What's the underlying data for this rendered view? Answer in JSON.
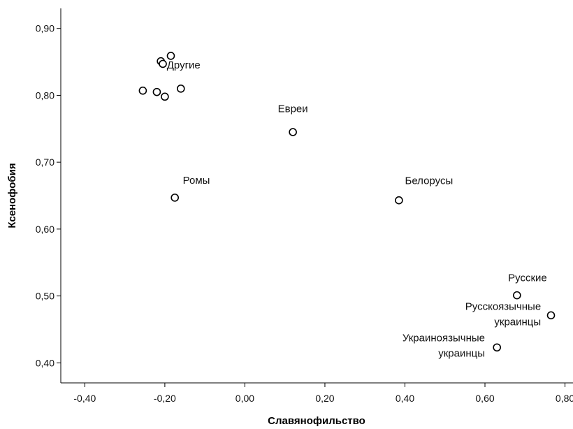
{
  "chart_data": {
    "type": "scatter",
    "xlabel": "Славянофильство",
    "ylabel": "Ксенофобия",
    "xlim": [
      -0.46,
      0.82
    ],
    "ylim": [
      0.37,
      0.93
    ],
    "x_ticks": [
      -0.4,
      -0.2,
      0.0,
      0.2,
      0.4,
      0.6,
      0.8
    ],
    "x_tick_labels": [
      "-0,40",
      "-0,20",
      "0,00",
      "0,20",
      "0,40",
      "0,60",
      "0,80"
    ],
    "y_ticks": [
      0.4,
      0.5,
      0.6,
      0.7,
      0.8,
      0.9
    ],
    "y_tick_labels": [
      "0,40",
      "0,50",
      "0,60",
      "0,70",
      "0,80",
      "0,90"
    ],
    "grid": false,
    "legend": "none",
    "marker": "open-circle",
    "points": [
      {
        "x": -0.185,
        "y": 0.859
      },
      {
        "x": -0.21,
        "y": 0.851
      },
      {
        "x": -0.205,
        "y": 0.847
      },
      {
        "x": -0.255,
        "y": 0.807
      },
      {
        "x": -0.22,
        "y": 0.805
      },
      {
        "x": -0.16,
        "y": 0.81
      },
      {
        "x": -0.2,
        "y": 0.798
      },
      {
        "x": 0.12,
        "y": 0.745
      },
      {
        "x": -0.175,
        "y": 0.647
      },
      {
        "x": 0.385,
        "y": 0.643
      },
      {
        "x": 0.68,
        "y": 0.501
      },
      {
        "x": 0.765,
        "y": 0.471
      },
      {
        "x": 0.63,
        "y": 0.423
      }
    ],
    "annotations": [
      {
        "lines": [
          "Другие"
        ],
        "x": -0.195,
        "y": 0.84,
        "anchor": "start"
      },
      {
        "lines": [
          "Евреи"
        ],
        "x": 0.12,
        "y": 0.775,
        "anchor": "middle"
      },
      {
        "lines": [
          "Ромы"
        ],
        "x": -0.155,
        "y": 0.668,
        "anchor": "start"
      },
      {
        "lines": [
          "Белорусы"
        ],
        "x": 0.4,
        "y": 0.667,
        "anchor": "start"
      },
      {
        "lines": [
          "Русские"
        ],
        "x": 0.755,
        "y": 0.522,
        "anchor": "end"
      },
      {
        "lines": [
          "Русскоязычные",
          "украинцы"
        ],
        "x": 0.74,
        "y": 0.479,
        "anchor": "end"
      },
      {
        "lines": [
          "Украиноязычные",
          "украинцы"
        ],
        "x": 0.6,
        "y": 0.432,
        "anchor": "end"
      }
    ]
  }
}
